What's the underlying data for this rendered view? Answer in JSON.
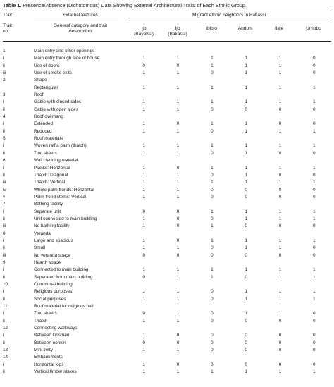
{
  "caption": {
    "label": "Table 1.",
    "text": "Presence/Absence (Dichotomous) Data Showing External Architectural Traits of Each Ethnic Group."
  },
  "headers": {
    "trait": "Trait",
    "trait_no": "no.",
    "external_features": "External features",
    "general_category": "General category and trait",
    "description": "description",
    "migrant": "Migrant ethnic neighbors in Bakassi",
    "groups": [
      {
        "line1": "Ijo",
        "line2": "(Bayelsa)"
      },
      {
        "line1": "Ijo",
        "line2": "(Bakassi)"
      },
      {
        "line1": "Ibibio",
        "line2": ""
      },
      {
        "line1": "Andoni",
        "line2": ""
      },
      {
        "line1": "Ilaje",
        "line2": ""
      },
      {
        "line1": "Urhobo",
        "line2": ""
      }
    ]
  },
  "rows": [
    {
      "no": "1",
      "feature": "Main entry and other openings",
      "values": [
        "",
        "",
        "",
        "",
        "",
        ""
      ]
    },
    {
      "no": "i",
      "feature": "Main entry through side of house",
      "values": [
        "1",
        "1",
        "1",
        "1",
        "1",
        "0"
      ]
    },
    {
      "no": "ii",
      "feature": "Use of doors",
      "values": [
        "0",
        "0",
        "1",
        "1",
        "1",
        "0"
      ]
    },
    {
      "no": "iii",
      "feature": "Use of smoke exits",
      "values": [
        "1",
        "1",
        "0",
        "1",
        "1",
        "0"
      ]
    },
    {
      "no": "2",
      "feature": "Shape",
      "values": [
        "",
        "",
        "",
        "",
        "",
        ""
      ]
    },
    {
      "no": "",
      "feature": "Rectangular",
      "values": [
        "1",
        "1",
        "1",
        "1",
        "1",
        "1"
      ]
    },
    {
      "no": "3",
      "feature": "Roof",
      "values": [
        "",
        "",
        "",
        "",
        "",
        ""
      ]
    },
    {
      "no": "i",
      "feature": "Gable with closed sides",
      "values": [
        "1",
        "1",
        "1",
        "1",
        "1",
        "1"
      ]
    },
    {
      "no": "ii",
      "feature": "Gable with open sides",
      "values": [
        "1",
        "1",
        "0",
        "0",
        "0",
        "0"
      ]
    },
    {
      "no": "4",
      "feature": "Roof overhang",
      "values": [
        "",
        "",
        "",
        "",
        "",
        ""
      ]
    },
    {
      "no": "i",
      "feature": "Extended",
      "values": [
        "1",
        "0",
        "1",
        "1",
        "0",
        "0"
      ]
    },
    {
      "no": "ii",
      "feature": "Reduced",
      "values": [
        "1",
        "1",
        "0",
        "1",
        "1",
        "1"
      ]
    },
    {
      "no": "5",
      "feature": "Roof materials",
      "values": [
        "",
        "",
        "",
        "",
        "",
        ""
      ]
    },
    {
      "no": "i",
      "feature": "Woven raffia palm (thatch)",
      "values": [
        "1",
        "1",
        "1",
        "1",
        "1",
        "1"
      ]
    },
    {
      "no": "ii",
      "feature": "Zinc sheets",
      "values": [
        "1",
        "1",
        "0",
        "1",
        "0",
        "0"
      ]
    },
    {
      "no": "6",
      "feature": "Wall cladding material",
      "values": [
        "",
        "",
        "",
        "",
        "",
        ""
      ]
    },
    {
      "no": "i",
      "feature": "Planks: Horizontal",
      "values": [
        "1",
        "0",
        "1",
        "1",
        "1",
        "1"
      ]
    },
    {
      "no": "ii",
      "feature": "Thatch: Diagonal",
      "values": [
        "1",
        "1",
        "0",
        "1",
        "0",
        "0"
      ]
    },
    {
      "no": "iii",
      "feature": "Thatch: Vertical",
      "values": [
        "1",
        "1",
        "1",
        "1",
        "1",
        "1"
      ]
    },
    {
      "no": "iv",
      "feature": "Whole palm fronds: Horizontal",
      "values": [
        "1",
        "1",
        "0",
        "0",
        "0",
        "0"
      ]
    },
    {
      "no": "v",
      "feature": "Palm frond stems: Vertical",
      "values": [
        "1",
        "1",
        "0",
        "0",
        "0",
        "0"
      ]
    },
    {
      "no": "7",
      "feature": "Bathing facility",
      "values": [
        "",
        "",
        "",
        "",
        "",
        ""
      ]
    },
    {
      "no": "i",
      "feature": "Separate unit",
      "values": [
        "0",
        "0",
        "1",
        "1",
        "1",
        "1"
      ]
    },
    {
      "no": "ii",
      "feature": "Unit connected to main building",
      "values": [
        "1",
        "0",
        "0",
        "1",
        "1",
        "1"
      ]
    },
    {
      "no": "iii",
      "feature": "No bathing facility",
      "values": [
        "1",
        "0",
        "1",
        "0",
        "0",
        "0"
      ]
    },
    {
      "no": "8",
      "feature": "Veranda",
      "values": [
        "",
        "",
        "",
        "",
        "",
        ""
      ]
    },
    {
      "no": "i",
      "feature": "Large and spacious",
      "values": [
        "1",
        "0",
        "1",
        "1",
        "1",
        "1"
      ]
    },
    {
      "no": "ii",
      "feature": "Small",
      "values": [
        "1",
        "1",
        "0",
        "1",
        "1",
        "0"
      ]
    },
    {
      "no": "iii",
      "feature": "No veranda space",
      "values": [
        "0",
        "0",
        "0",
        "0",
        "0",
        "0"
      ]
    },
    {
      "no": "9",
      "feature": "Hearth space",
      "values": [
        "",
        "",
        "",
        "",
        "",
        ""
      ]
    },
    {
      "no": "i",
      "feature": "Connected to main building",
      "values": [
        "1",
        "1",
        "1",
        "1",
        "1",
        "1"
      ]
    },
    {
      "no": "ii",
      "feature": "Separated from main building",
      "values": [
        "0",
        "1",
        "1",
        "0",
        "1",
        "1"
      ]
    },
    {
      "no": "10",
      "feature": "Communal building",
      "values": [
        "",
        "",
        "",
        "",
        "",
        ""
      ]
    },
    {
      "no": "i",
      "feature": "Religious purposes",
      "values": [
        "1",
        "1",
        "0",
        "1",
        "1",
        "1"
      ]
    },
    {
      "no": "ii",
      "feature": "Social purposes",
      "values": [
        "1",
        "1",
        "0",
        "1",
        "1",
        "1"
      ]
    },
    {
      "no": "11",
      "feature": "Roof material for religious hall",
      "values": [
        "",
        "",
        "",
        "",
        "",
        ""
      ]
    },
    {
      "no": "i",
      "feature": "Zinc sheets",
      "values": [
        "0",
        "1",
        "0",
        "1",
        "1",
        "0"
      ]
    },
    {
      "no": "ii",
      "feature": "Thatch",
      "values": [
        "1",
        "1",
        "0",
        "0",
        "0",
        "0"
      ]
    },
    {
      "no": "12",
      "feature": "Connecting walkways",
      "values": [
        "",
        "",
        "",
        "",
        "",
        ""
      ]
    },
    {
      "no": "i",
      "feature": "Between kinsmen",
      "values": [
        "1",
        "0",
        "0",
        "0",
        "0",
        "0"
      ]
    },
    {
      "no": "ii",
      "feature": "Between nonkin",
      "values": [
        "0",
        "0",
        "0",
        "0",
        "0",
        "0"
      ]
    },
    {
      "no": "13",
      "feature": "Mini Jetty",
      "values": [
        "1",
        "1",
        "0",
        "0",
        "0",
        "0"
      ]
    },
    {
      "no": "14",
      "feature": "Embankments",
      "values": [
        "",
        "",
        "",
        "",
        "",
        ""
      ]
    },
    {
      "no": "i",
      "feature": "Horizontal logs",
      "values": [
        "1",
        "0",
        "0",
        "0",
        "0",
        "0"
      ]
    },
    {
      "no": "ii",
      "feature": "Vertical timber stakes",
      "values": [
        "1",
        "1",
        "1",
        "1",
        "1",
        "1"
      ]
    }
  ]
}
